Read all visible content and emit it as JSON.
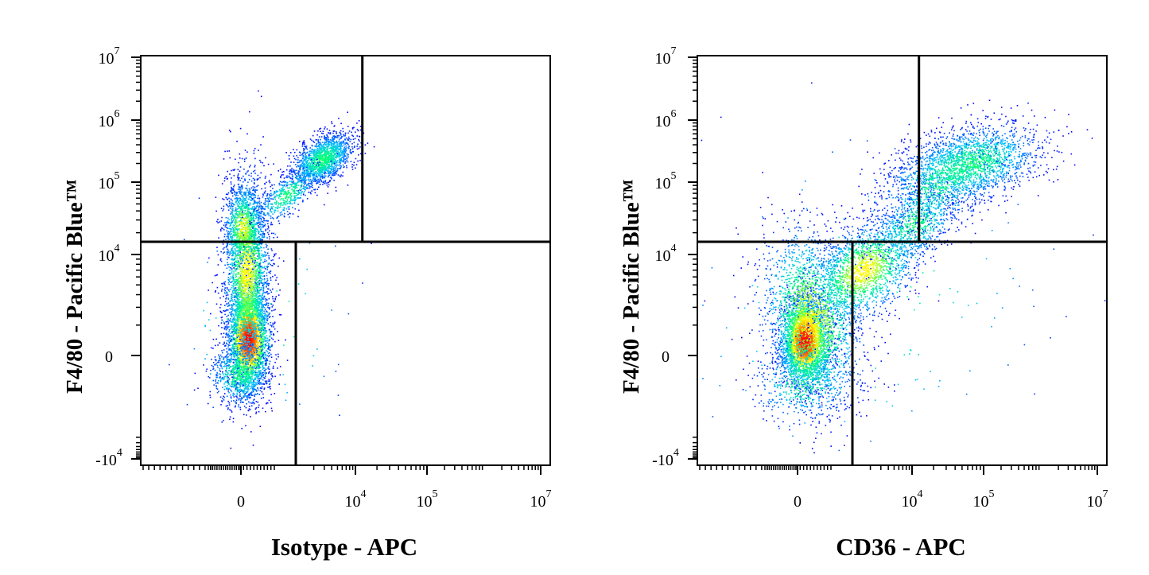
{
  "chart_data": [
    {
      "type": "scatter",
      "subtype": "flow-cytometry-density-dot-plot",
      "xlabel": "Isotype - APC",
      "ylabel": "F4/80 - Pacific Blue™",
      "x_scale": "biexponential",
      "y_scale": "biexponential",
      "x_ticks": [
        {
          "value": 0,
          "base": "0",
          "exp": ""
        },
        {
          "value": 10000,
          "base": "10",
          "exp": "4"
        },
        {
          "value": 100000,
          "base": "10",
          "exp": "5"
        },
        {
          "value": 10000000,
          "base": "10",
          "exp": "7"
        }
      ],
      "y_ticks": [
        {
          "value": -10000,
          "base": "-10",
          "exp": "4"
        },
        {
          "value": 0,
          "base": "0",
          "exp": ""
        },
        {
          "value": 10000,
          "base": "10",
          "exp": "4"
        },
        {
          "value": 100000,
          "base": "10",
          "exp": "5"
        },
        {
          "value": 1000000,
          "base": "10",
          "exp": "6"
        },
        {
          "value": 10000000,
          "base": "10",
          "exp": "7"
        }
      ],
      "gates": {
        "upper_vertical_x": 12500,
        "horizontal_y": 15000,
        "lower_vertical_x": 2000
      },
      "populations": [
        {
          "center": [
            0,
            0
          ],
          "description_level": "densest"
        },
        {
          "center": [
            0,
            3000
          ]
        },
        {
          "center": [
            3000,
            200000
          ]
        }
      ],
      "color_scale": [
        "#0000ff",
        "#00bfff",
        "#00ff80",
        "#ffff00",
        "#ff8000",
        "#ff0000"
      ]
    },
    {
      "type": "scatter",
      "subtype": "flow-cytometry-density-dot-plot",
      "xlabel": "CD36 - APC",
      "ylabel": "F4/80 - Pacific Blue™",
      "x_scale": "biexponential",
      "y_scale": "biexponential",
      "x_ticks": [
        {
          "value": 0,
          "base": "0",
          "exp": ""
        },
        {
          "value": 10000,
          "base": "10",
          "exp": "4"
        },
        {
          "value": 100000,
          "base": "10",
          "exp": "5"
        },
        {
          "value": 10000000,
          "base": "10",
          "exp": "7"
        }
      ],
      "y_ticks": [
        {
          "value": -10000,
          "base": "-10",
          "exp": "4"
        },
        {
          "value": 0,
          "base": "0",
          "exp": ""
        },
        {
          "value": 10000,
          "base": "10",
          "exp": "4"
        },
        {
          "value": 100000,
          "base": "10",
          "exp": "5"
        },
        {
          "value": 1000000,
          "base": "10",
          "exp": "6"
        },
        {
          "value": 10000000,
          "base": "10",
          "exp": "7"
        }
      ],
      "gates": {
        "upper_vertical_x": 12500,
        "horizontal_y": 15000,
        "lower_vertical_x": 2000
      },
      "populations": [
        {
          "center": [
            0,
            0
          ]
        },
        {
          "center": [
            3000,
            3000
          ]
        },
        {
          "center": [
            60000,
            200000
          ]
        }
      ],
      "color_scale": [
        "#0000ff",
        "#00bfff",
        "#00ff80",
        "#ffff00",
        "#ff8000",
        "#ff0000"
      ]
    }
  ]
}
